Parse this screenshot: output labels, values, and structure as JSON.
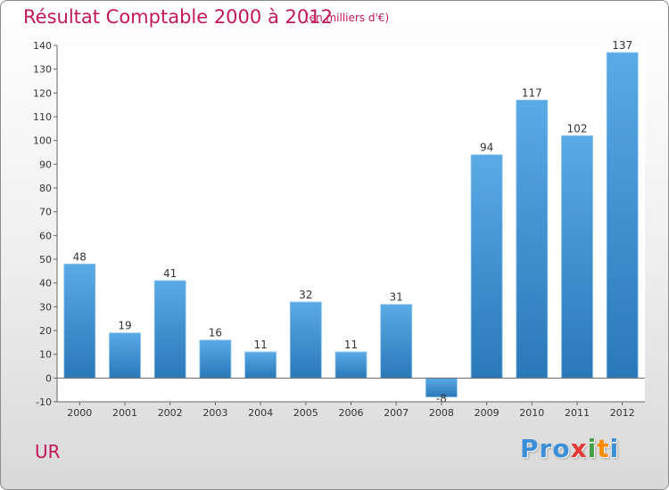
{
  "header": {
    "title": "Résultat Comptable 2000 à 2012",
    "subtitle": "(en milliers d'€)"
  },
  "footer": {
    "commune": "UR",
    "brand_letters": [
      {
        "ch": "P",
        "color": "#3a8fd6"
      },
      {
        "ch": "r",
        "color": "#3a8fd6"
      },
      {
        "ch": "o",
        "color": "#3a8fd6"
      },
      {
        "ch": "x",
        "color": "#e53935"
      },
      {
        "ch": "i",
        "color": "#43a047"
      },
      {
        "ch": "t",
        "color": "#fb8c00"
      },
      {
        "ch": "i",
        "color": "#3a8fd6"
      }
    ]
  },
  "chart_data": {
    "type": "bar",
    "title": "Résultat Comptable 2000 à 2012",
    "subtitle": "(en milliers d'€)",
    "categories": [
      "2000",
      "2001",
      "2002",
      "2003",
      "2004",
      "2005",
      "2006",
      "2007",
      "2008",
      "2009",
      "2010",
      "2011",
      "2012"
    ],
    "values": [
      48,
      19,
      41,
      16,
      11,
      32,
      11,
      31,
      -8,
      94,
      117,
      102,
      137
    ],
    "value_labels": [
      "48",
      "19",
      "41",
      "16",
      "11",
      "32",
      "11",
      "31",
      "-8",
      "94",
      "117",
      "102",
      "137"
    ],
    "ylim": [
      -10,
      140
    ],
    "yticks": [
      -10,
      0,
      10,
      20,
      30,
      40,
      50,
      60,
      70,
      80,
      90,
      100,
      110,
      120,
      130,
      140
    ],
    "grid": false,
    "colors": {
      "bar_light": "#5aaae6",
      "bar_dark": "#2a78b8",
      "accent": "#c2185b"
    }
  }
}
